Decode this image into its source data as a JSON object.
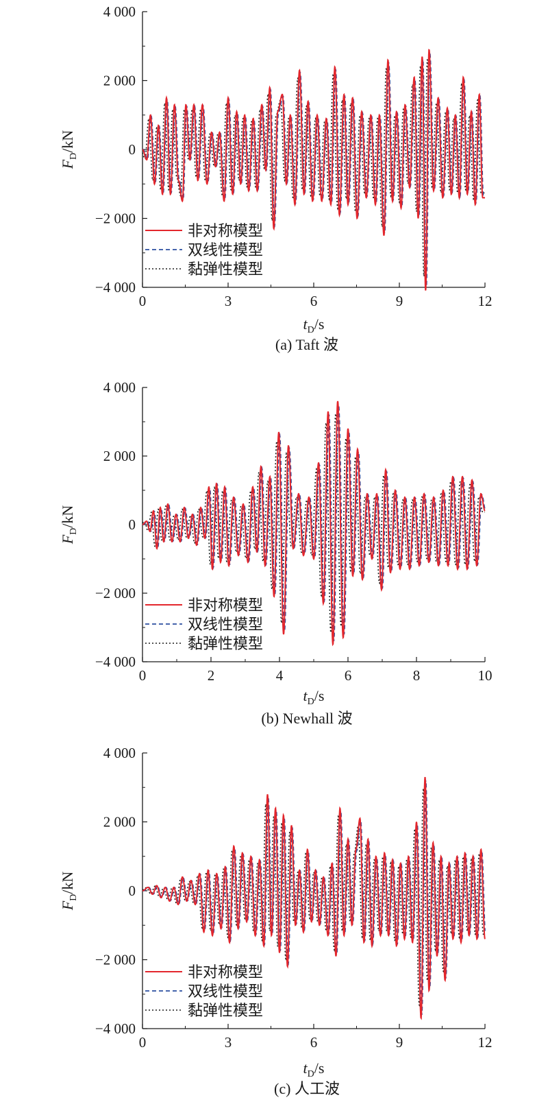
{
  "colors": {
    "asym": "#e3262c",
    "bilinear": "#2b4fa0",
    "viscoelastic": "#1a1a1a",
    "axis": "#1a1a1a"
  },
  "chart_data": [
    {
      "type": "line",
      "caption": "(a) Taft 波",
      "xlabel": {
        "main": "t",
        "sub": "D",
        "rest": "/s"
      },
      "ylabel": {
        "main": "F",
        "sub": "D",
        "rest": "/kN"
      },
      "xlim": [
        0,
        12
      ],
      "ylim": [
        -4000,
        4000
      ],
      "xticks": [
        0,
        3,
        6,
        9,
        12
      ],
      "xtick_labels": [
        "0",
        "3",
        "6",
        "9",
        "12"
      ],
      "yticks": [
        -4000,
        -2000,
        0,
        2000,
        4000
      ],
      "ytick_labels": [
        "−4 000",
        "−2 000",
        "0",
        "2 000",
        "4 000"
      ],
      "legend_position": "bottom-left",
      "series": [
        {
          "name": "非对称模型",
          "style": "solid",
          "color_key": "asym"
        },
        {
          "name": "双线性模型",
          "style": "dashed",
          "color_key": "bilinear"
        },
        {
          "name": "黏弹性模型",
          "style": "dotted",
          "color_key": "viscoelastic"
        }
      ],
      "peaks": [
        [
          0.0,
          0
        ],
        [
          0.15,
          -300
        ],
        [
          0.28,
          1000
        ],
        [
          0.42,
          -1000
        ],
        [
          0.56,
          700
        ],
        [
          0.7,
          -1300
        ],
        [
          0.84,
          1500
        ],
        [
          0.98,
          -1300
        ],
        [
          1.12,
          1300
        ],
        [
          1.26,
          -900
        ],
        [
          1.4,
          -1500
        ],
        [
          1.52,
          1300
        ],
        [
          1.66,
          -300
        ],
        [
          1.8,
          1300
        ],
        [
          1.94,
          -900
        ],
        [
          2.1,
          1300
        ],
        [
          2.26,
          -1000
        ],
        [
          2.42,
          500
        ],
        [
          2.56,
          -500
        ],
        [
          2.7,
          500
        ],
        [
          2.86,
          -1500
        ],
        [
          3.0,
          1500
        ],
        [
          3.16,
          -1300
        ],
        [
          3.3,
          1100
        ],
        [
          3.44,
          -1000
        ],
        [
          3.58,
          1000
        ],
        [
          3.72,
          -1200
        ],
        [
          3.88,
          900
        ],
        [
          4.02,
          -1200
        ],
        [
          4.18,
          1300
        ],
        [
          4.32,
          -600
        ],
        [
          4.46,
          1800
        ],
        [
          4.6,
          -2300
        ],
        [
          4.74,
          1100
        ],
        [
          4.9,
          1600
        ],
        [
          5.04,
          -1000
        ],
        [
          5.18,
          1000
        ],
        [
          5.34,
          -1600
        ],
        [
          5.5,
          2300
        ],
        [
          5.66,
          -1300
        ],
        [
          5.8,
          1400
        ],
        [
          5.96,
          -1500
        ],
        [
          6.12,
          1000
        ],
        [
          6.28,
          -1500
        ],
        [
          6.44,
          900
        ],
        [
          6.6,
          -1600
        ],
        [
          6.74,
          2400
        ],
        [
          6.9,
          -1900
        ],
        [
          7.06,
          1600
        ],
        [
          7.2,
          -1600
        ],
        [
          7.36,
          1500
        ],
        [
          7.52,
          -2000
        ],
        [
          7.68,
          1100
        ],
        [
          7.84,
          -1400
        ],
        [
          8.0,
          1000
        ],
        [
          8.16,
          -1600
        ],
        [
          8.3,
          1000
        ],
        [
          8.46,
          -2500
        ],
        [
          8.6,
          2600
        ],
        [
          8.76,
          -1500
        ],
        [
          8.9,
          1100
        ],
        [
          9.06,
          -1700
        ],
        [
          9.2,
          1300
        ],
        [
          9.36,
          -1100
        ],
        [
          9.52,
          2100
        ],
        [
          9.66,
          -2000
        ],
        [
          9.8,
          2700
        ],
        [
          9.92,
          -4100
        ],
        [
          10.04,
          2900
        ],
        [
          10.2,
          -1200
        ],
        [
          10.36,
          1500
        ],
        [
          10.52,
          -1400
        ],
        [
          10.68,
          1200
        ],
        [
          10.82,
          -1300
        ],
        [
          10.96,
          1000
        ],
        [
          11.1,
          -1400
        ],
        [
          11.24,
          2100
        ],
        [
          11.38,
          -1300
        ],
        [
          11.52,
          1100
        ],
        [
          11.66,
          -1600
        ],
        [
          11.8,
          1600
        ],
        [
          11.92,
          -1400
        ],
        [
          12.0,
          -1400
        ]
      ]
    },
    {
      "type": "line",
      "caption": "(b) Newhall 波",
      "xlabel": {
        "main": "t",
        "sub": "D",
        "rest": "/s"
      },
      "ylabel": {
        "main": "F",
        "sub": "D",
        "rest": "/kN"
      },
      "xlim": [
        0,
        10
      ],
      "ylim": [
        -4000,
        4000
      ],
      "xticks": [
        0,
        2,
        4,
        6,
        8,
        10
      ],
      "xtick_labels": [
        "0",
        "2",
        "4",
        "6",
        "8",
        "10"
      ],
      "yticks": [
        -4000,
        -2000,
        0,
        2000,
        4000
      ],
      "ytick_labels": [
        "−4 000",
        "−2 000",
        "0",
        "2 000",
        "4 000"
      ],
      "legend_position": "bottom-left",
      "series": [
        {
          "name": "非对称模型",
          "style": "solid",
          "color_key": "asym"
        },
        {
          "name": "双线性模型",
          "style": "dashed",
          "color_key": "bilinear"
        },
        {
          "name": "黏弹性模型",
          "style": "dotted",
          "color_key": "viscoelastic"
        }
      ],
      "peaks": [
        [
          0.0,
          0
        ],
        [
          0.12,
          100
        ],
        [
          0.22,
          -200
        ],
        [
          0.32,
          400
        ],
        [
          0.42,
          -700
        ],
        [
          0.52,
          500
        ],
        [
          0.62,
          -500
        ],
        [
          0.74,
          600
        ],
        [
          0.86,
          -500
        ],
        [
          0.98,
          300
        ],
        [
          1.1,
          -500
        ],
        [
          1.22,
          500
        ],
        [
          1.34,
          -400
        ],
        [
          1.46,
          300
        ],
        [
          1.58,
          -600
        ],
        [
          1.7,
          500
        ],
        [
          1.82,
          -400
        ],
        [
          1.94,
          1100
        ],
        [
          2.04,
          -1300
        ],
        [
          2.16,
          1200
        ],
        [
          2.28,
          -1100
        ],
        [
          2.4,
          1100
        ],
        [
          2.52,
          -1200
        ],
        [
          2.66,
          800
        ],
        [
          2.8,
          -900
        ],
        [
          2.94,
          600
        ],
        [
          3.08,
          -1100
        ],
        [
          3.22,
          1100
        ],
        [
          3.34,
          -800
        ],
        [
          3.46,
          1700
        ],
        [
          3.58,
          -1200
        ],
        [
          3.72,
          1400
        ],
        [
          3.84,
          -2100
        ],
        [
          3.98,
          2700
        ],
        [
          4.12,
          -3200
        ],
        [
          4.26,
          2300
        ],
        [
          4.4,
          -700
        ],
        [
          4.56,
          900
        ],
        [
          4.7,
          -900
        ],
        [
          4.86,
          800
        ],
        [
          5.0,
          -1000
        ],
        [
          5.14,
          1800
        ],
        [
          5.28,
          -2300
        ],
        [
          5.42,
          3300
        ],
        [
          5.56,
          -3500
        ],
        [
          5.7,
          3600
        ],
        [
          5.86,
          -3300
        ],
        [
          6.0,
          2800
        ],
        [
          6.14,
          -1500
        ],
        [
          6.28,
          2200
        ],
        [
          6.42,
          -1600
        ],
        [
          6.56,
          900
        ],
        [
          6.7,
          -1000
        ],
        [
          6.84,
          900
        ],
        [
          6.98,
          -1900
        ],
        [
          7.1,
          1600
        ],
        [
          7.24,
          -1400
        ],
        [
          7.38,
          1000
        ],
        [
          7.52,
          -1300
        ],
        [
          7.66,
          800
        ],
        [
          7.8,
          -1300
        ],
        [
          7.94,
          800
        ],
        [
          8.08,
          -1200
        ],
        [
          8.22,
          900
        ],
        [
          8.36,
          -1100
        ],
        [
          8.5,
          800
        ],
        [
          8.64,
          -1200
        ],
        [
          8.78,
          1000
        ],
        [
          8.92,
          -1200
        ],
        [
          9.06,
          1400
        ],
        [
          9.2,
          -1300
        ],
        [
          9.34,
          1400
        ],
        [
          9.48,
          -1300
        ],
        [
          9.62,
          1300
        ],
        [
          9.76,
          -1200
        ],
        [
          9.88,
          900
        ],
        [
          10.0,
          400
        ]
      ]
    },
    {
      "type": "line",
      "caption": "(c) 人工波",
      "xlabel": {
        "main": "t",
        "sub": "D",
        "rest": "/s"
      },
      "ylabel": {
        "main": "F",
        "sub": "D",
        "rest": "/kN"
      },
      "xlim": [
        0,
        12
      ],
      "ylim": [
        -4000,
        4000
      ],
      "xticks": [
        0,
        3,
        6,
        9,
        12
      ],
      "xtick_labels": [
        "0",
        "3",
        "6",
        "9",
        "12"
      ],
      "yticks": [
        -4000,
        -2000,
        0,
        2000,
        4000
      ],
      "ytick_labels": [
        "−4 000",
        "−2 000",
        "0",
        "2 000",
        "4 000"
      ],
      "legend_position": "bottom-left",
      "series": [
        {
          "name": "非对称模型",
          "style": "solid",
          "color_key": "asym"
        },
        {
          "name": "双线性模型",
          "style": "dashed",
          "color_key": "bilinear"
        },
        {
          "name": "黏弹性模型",
          "style": "dotted",
          "color_key": "viscoelastic"
        }
      ],
      "peaks": [
        [
          0.0,
          0
        ],
        [
          0.2,
          100
        ],
        [
          0.35,
          -100
        ],
        [
          0.5,
          150
        ],
        [
          0.65,
          -200
        ],
        [
          0.8,
          100
        ],
        [
          0.95,
          -300
        ],
        [
          1.1,
          100
        ],
        [
          1.25,
          -400
        ],
        [
          1.4,
          400
        ],
        [
          1.55,
          -300
        ],
        [
          1.7,
          300
        ],
        [
          1.85,
          -400
        ],
        [
          2.0,
          500
        ],
        [
          2.15,
          -1200
        ],
        [
          2.3,
          600
        ],
        [
          2.45,
          -1300
        ],
        [
          2.6,
          500
        ],
        [
          2.75,
          -1100
        ],
        [
          2.9,
          700
        ],
        [
          3.05,
          -1500
        ],
        [
          3.2,
          1300
        ],
        [
          3.35,
          -1100
        ],
        [
          3.5,
          1100
        ],
        [
          3.65,
          -900
        ],
        [
          3.8,
          1000
        ],
        [
          3.95,
          -1300
        ],
        [
          4.1,
          900
        ],
        [
          4.25,
          -1600
        ],
        [
          4.38,
          2800
        ],
        [
          4.52,
          -1300
        ],
        [
          4.66,
          2400
        ],
        [
          4.8,
          -1800
        ],
        [
          4.94,
          2200
        ],
        [
          5.08,
          -2200
        ],
        [
          5.22,
          1900
        ],
        [
          5.36,
          -1000
        ],
        [
          5.5,
          600
        ],
        [
          5.64,
          -1200
        ],
        [
          5.78,
          1200
        ],
        [
          5.92,
          -900
        ],
        [
          6.06,
          600
        ],
        [
          6.2,
          -1000
        ],
        [
          6.34,
          400
        ],
        [
          6.5,
          -1300
        ],
        [
          6.64,
          800
        ],
        [
          6.78,
          -1900
        ],
        [
          6.92,
          2400
        ],
        [
          7.06,
          -1300
        ],
        [
          7.2,
          1500
        ],
        [
          7.34,
          -1000
        ],
        [
          7.48,
          1200
        ],
        [
          7.62,
          2100
        ],
        [
          7.76,
          -1500
        ],
        [
          7.9,
          1500
        ],
        [
          8.04,
          -1600
        ],
        [
          8.18,
          1000
        ],
        [
          8.34,
          -1300
        ],
        [
          8.48,
          1100
        ],
        [
          8.62,
          -1300
        ],
        [
          8.76,
          900
        ],
        [
          8.9,
          -1600
        ],
        [
          9.04,
          800
        ],
        [
          9.18,
          -1400
        ],
        [
          9.32,
          1000
        ],
        [
          9.46,
          -1500
        ],
        [
          9.6,
          2000
        ],
        [
          9.76,
          -3700
        ],
        [
          9.9,
          3300
        ],
        [
          10.04,
          -2900
        ],
        [
          10.18,
          1400
        ],
        [
          10.32,
          -1900
        ],
        [
          10.46,
          1000
        ],
        [
          10.6,
          -2600
        ],
        [
          10.74,
          800
        ],
        [
          10.88,
          -1400
        ],
        [
          11.02,
          1000
        ],
        [
          11.16,
          -1500
        ],
        [
          11.3,
          1100
        ],
        [
          11.44,
          -1300
        ],
        [
          11.58,
          1000
        ],
        [
          11.72,
          -1400
        ],
        [
          11.86,
          1200
        ],
        [
          12.0,
          -1400
        ]
      ]
    }
  ]
}
